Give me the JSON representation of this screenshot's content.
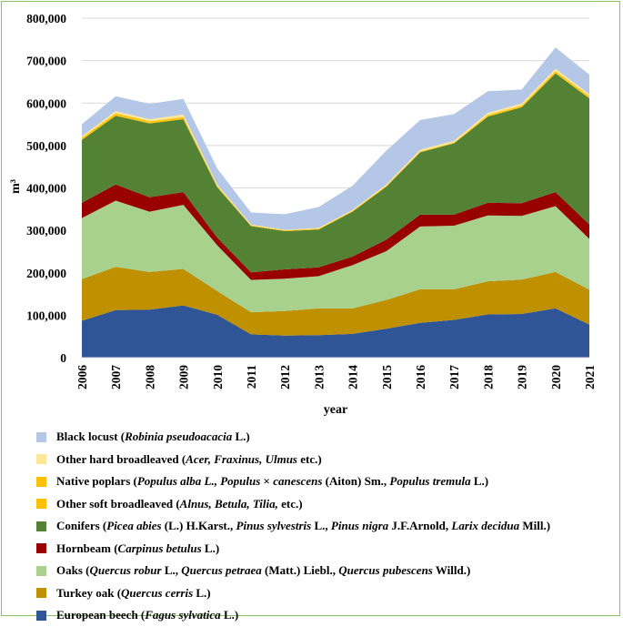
{
  "chart_data": {
    "type": "area",
    "stacked": true,
    "title": "",
    "xlabel": "year",
    "ylabel": "m³",
    "ylim": [
      0,
      800000
    ],
    "yticks": [
      0,
      100000,
      200000,
      300000,
      400000,
      500000,
      600000,
      700000,
      800000
    ],
    "ytick_labels": [
      "0",
      "100,000",
      "200,000",
      "300,000",
      "400,000",
      "500,000",
      "600,000",
      "700,000",
      "800,000"
    ],
    "grid": true,
    "legend_position": "bottom",
    "x": [
      "2006",
      "2007",
      "2008",
      "2009",
      "2010",
      "2011",
      "2012",
      "2013",
      "2014",
      "2015",
      "2016",
      "2017",
      "2018",
      "2019",
      "2020",
      "2021"
    ],
    "series": [
      {
        "name": "European beech",
        "color": "#2f5597",
        "legend": [
          {
            "t": "European beech ("
          },
          {
            "t": "Fagus sylvatica",
            "i": true
          },
          {
            "t": " L.)"
          }
        ],
        "values": [
          87000,
          112000,
          113000,
          123000,
          101000,
          55000,
          52000,
          53000,
          56000,
          68000,
          82000,
          89000,
          102000,
          103000,
          116000,
          78000
        ]
      },
      {
        "name": "Turkey oak",
        "color": "#bf9000",
        "legend": [
          {
            "t": "Turkey oak ("
          },
          {
            "t": "Quercus cerris",
            "i": true
          },
          {
            "t": " L.)"
          }
        ],
        "values": [
          98000,
          102000,
          89000,
          86000,
          56000,
          52000,
          58000,
          63000,
          60000,
          68000,
          79000,
          72000,
          78000,
          81000,
          86000,
          82000
        ]
      },
      {
        "name": "Oaks",
        "color": "#a9d18e",
        "legend": [
          {
            "t": "Oaks ("
          },
          {
            "t": "Quercus robur",
            "i": true
          },
          {
            "t": " L., "
          },
          {
            "t": "Quercus petraea",
            "i": true
          },
          {
            "t": " (Matt.) Liebl., "
          },
          {
            "t": "Quercus pubescens",
            "i": true
          },
          {
            "t": " Willd.)"
          }
        ],
        "values": [
          144000,
          156000,
          142000,
          151000,
          108000,
          76000,
          76000,
          76000,
          102000,
          115000,
          148000,
          150000,
          155000,
          150000,
          155000,
          120000
        ]
      },
      {
        "name": "Hornbeam",
        "color": "#990000",
        "legend": [
          {
            "t": "Hornbeam ("
          },
          {
            "t": "Carpinus betulus",
            "i": true
          },
          {
            "t": " L.)"
          }
        ],
        "values": [
          36000,
          38000,
          34000,
          30000,
          18000,
          18000,
          22000,
          21000,
          20000,
          27000,
          28000,
          26000,
          30000,
          30000,
          33000,
          34000
        ]
      },
      {
        "name": "Conifers",
        "color": "#548235",
        "legend": [
          {
            "t": "Conifers ("
          },
          {
            "t": "Picea abies",
            "i": true
          },
          {
            "t": " (L.) H.Karst., "
          },
          {
            "t": "Pinus sylvestris",
            "i": true
          },
          {
            "t": " L., "
          },
          {
            "t": "Pinus nigra",
            "i": true
          },
          {
            "t": " J.F.Arnold, "
          },
          {
            "t": "Larix decidua",
            "i": true
          },
          {
            "t": " Mill.)"
          }
        ],
        "values": [
          148000,
          162000,
          174000,
          172000,
          119000,
          109000,
          90000,
          89000,
          106000,
          125000,
          147000,
          168000,
          203000,
          226000,
          280000,
          297000
        ]
      },
      {
        "name": "Other soft broadleaved",
        "color": "#ffc000",
        "legend": [
          {
            "t": "Other soft broadleaved ("
          },
          {
            "t": "Alnus, Betula, Tilia,",
            "i": true
          },
          {
            "t": " etc.)"
          }
        ],
        "values": [
          2000,
          2000,
          2000,
          2000,
          1000,
          1000,
          1000,
          1000,
          1000,
          1000,
          1000,
          1000,
          2000,
          2000,
          2000,
          2000
        ]
      },
      {
        "name": "Native poplars",
        "color": "#ffc000",
        "legend": [
          {
            "t": "Native poplars ("
          },
          {
            "t": "Populus alba L., Populus",
            "i": true
          },
          {
            "t": " × "
          },
          {
            "t": "canescens",
            "i": true
          },
          {
            "t": " (Aiton) Sm., "
          },
          {
            "t": "Populus tremula",
            "i": true
          },
          {
            "t": " L.)"
          }
        ],
        "values": [
          3000,
          4000,
          3000,
          3000,
          2000,
          1000,
          1000,
          1000,
          1000,
          1000,
          1000,
          1000,
          2000,
          2000,
          3000,
          3000
        ]
      },
      {
        "name": "Other hard broadleaved",
        "color": "#ffe699",
        "legend": [
          {
            "t": "Other hard broadleaved ("
          },
          {
            "t": "Acer, Fraxinus, Ulmus",
            "i": true
          },
          {
            "t": " etc.)"
          }
        ],
        "values": [
          4000,
          5000,
          5000,
          6000,
          3000,
          2000,
          1000,
          2000,
          2000,
          3000,
          4000,
          4000,
          5000,
          5000,
          6000,
          5000
        ]
      },
      {
        "name": "Black locust",
        "color": "#b4c7e7",
        "legend": [
          {
            "t": "Black locust ("
          },
          {
            "t": "Robinia pseudoacacia",
            "i": true
          },
          {
            "t": " L.)"
          }
        ],
        "values": [
          28000,
          35000,
          36000,
          37000,
          38000,
          28000,
          37000,
          49000,
          57000,
          80000,
          70000,
          63000,
          51000,
          33000,
          50000,
          46000
        ]
      }
    ]
  }
}
